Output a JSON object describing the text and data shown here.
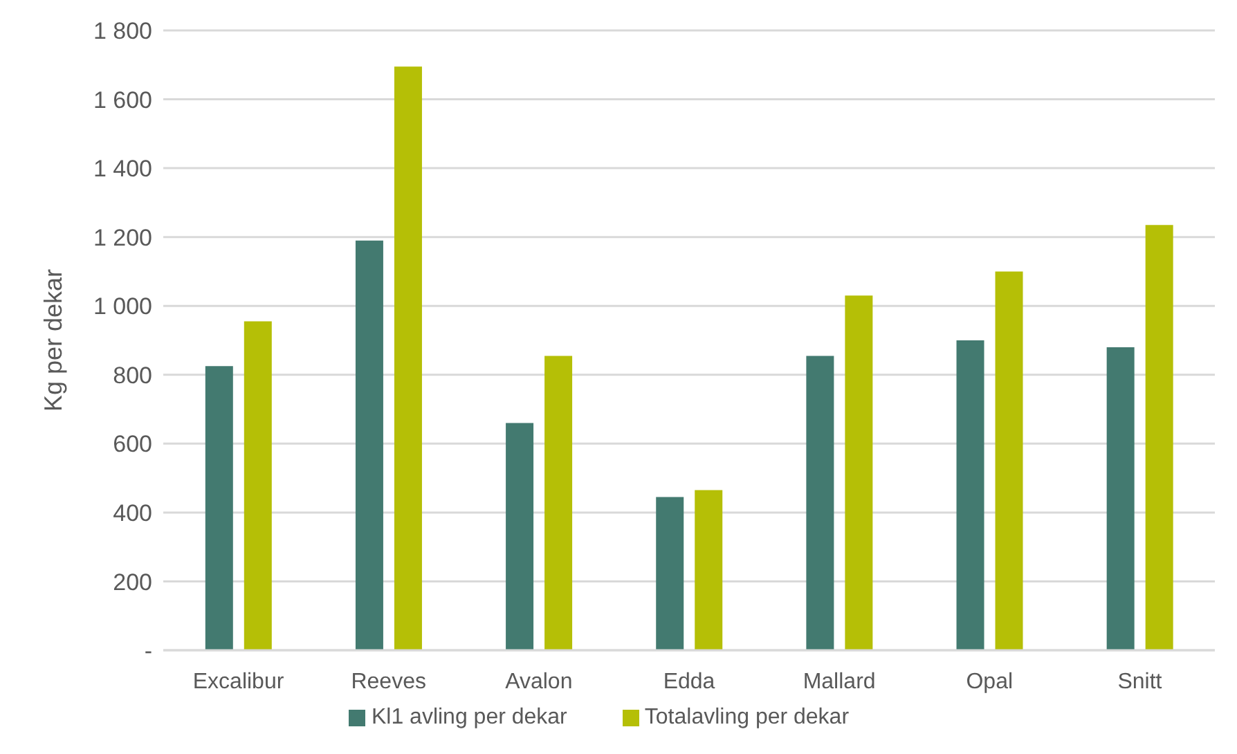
{
  "chart_data": {
    "type": "bar",
    "ylabel": "Kg per dekar",
    "categories": [
      "Excalibur",
      "Reeves",
      "Avalon",
      "Edda",
      "Mallard",
      "Opal",
      "Snitt"
    ],
    "series": [
      {
        "name": "Kl1 avling per dekar",
        "color": "#437a70",
        "values": [
          825,
          1190,
          660,
          445,
          855,
          900,
          880
        ]
      },
      {
        "name": "Totalavling per dekar",
        "color": "#b5bf06",
        "values": [
          955,
          1695,
          855,
          465,
          1030,
          1100,
          1235
        ]
      }
    ],
    "ylim": [
      0,
      1800
    ],
    "yticks": [
      {
        "value": 0,
        "label": "-"
      },
      {
        "value": 200,
        "label": "200"
      },
      {
        "value": 400,
        "label": "400"
      },
      {
        "value": 600,
        "label": "600"
      },
      {
        "value": 800,
        "label": "800"
      },
      {
        "value": 1000,
        "label": "1 000"
      },
      {
        "value": 1200,
        "label": "1 200"
      },
      {
        "value": 1400,
        "label": "1 400"
      },
      {
        "value": 1600,
        "label": "1 600"
      },
      {
        "value": 1800,
        "label": "1 800"
      }
    ],
    "grid": "y",
    "legend": "bottom"
  }
}
